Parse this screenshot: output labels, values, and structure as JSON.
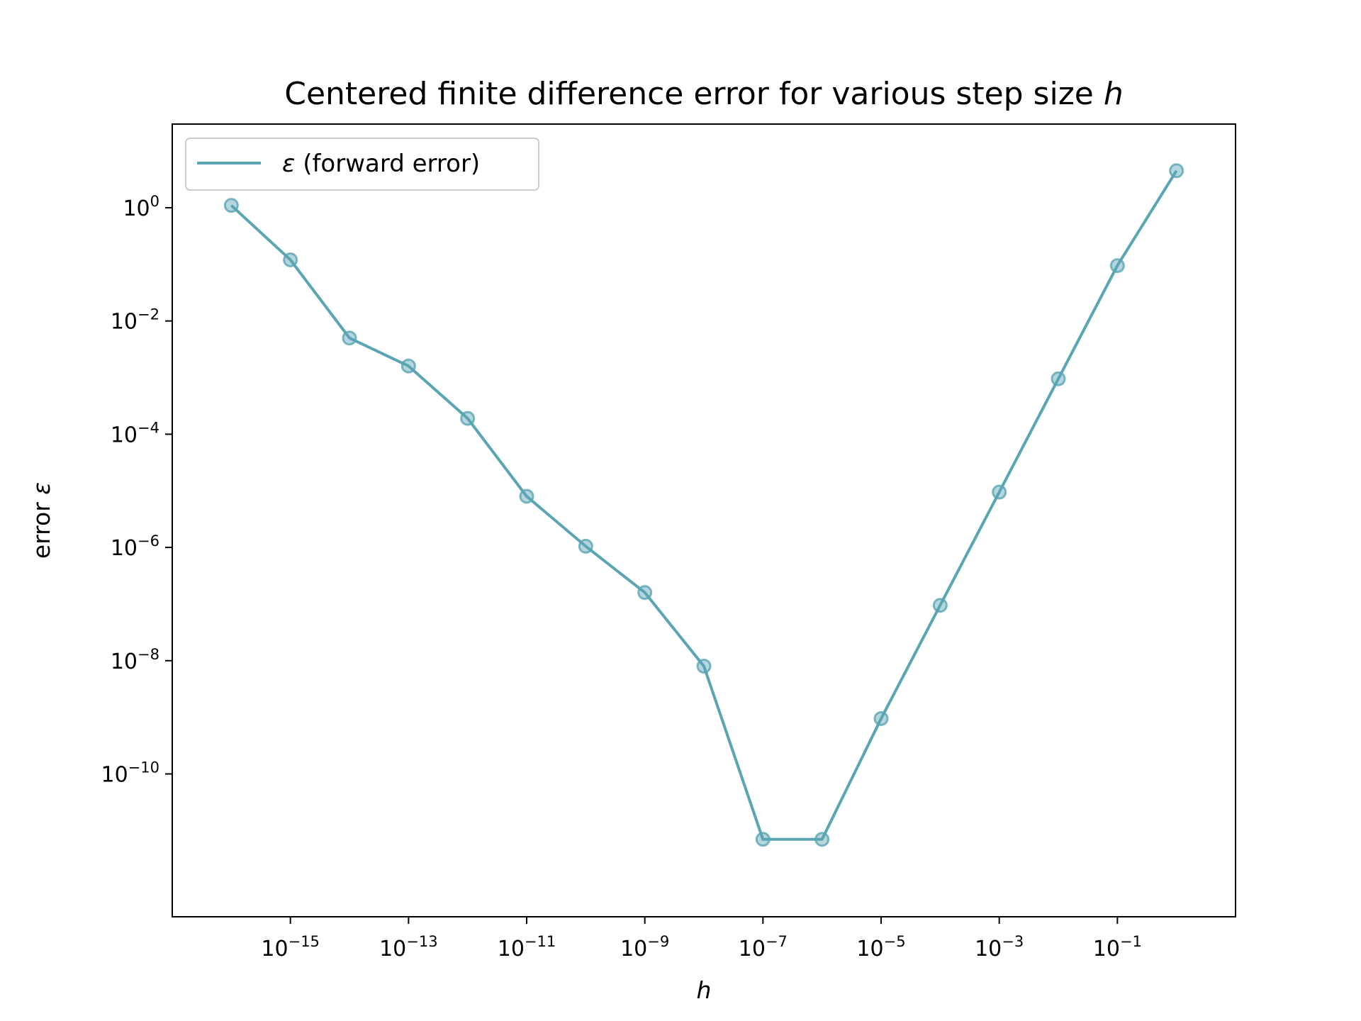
{
  "chart_data": {
    "type": "line",
    "title_text": "Centered finite difference error for various step size ",
    "title_var": "h",
    "xlabel": "h",
    "ylabel_text": "error ",
    "ylabel_var": "ε",
    "xscale": "log",
    "yscale": "log",
    "xlim": [
      1e-17,
      10
    ],
    "ylim": [
      3e-13,
      30
    ],
    "x_ticks": [
      1e-15,
      1e-13,
      1e-11,
      1e-09,
      1e-07,
      1e-05,
      0.001,
      0.1
    ],
    "x_tick_labels": [
      {
        "base": "10",
        "exp": "−15"
      },
      {
        "base": "10",
        "exp": "−13"
      },
      {
        "base": "10",
        "exp": "−11"
      },
      {
        "base": "10",
        "exp": "−9"
      },
      {
        "base": "10",
        "exp": "−7"
      },
      {
        "base": "10",
        "exp": "−5"
      },
      {
        "base": "10",
        "exp": "−3"
      },
      {
        "base": "10",
        "exp": "−1"
      }
    ],
    "y_ticks": [
      1e-10,
      1e-08,
      1e-06,
      0.0001,
      0.01,
      1
    ],
    "y_tick_labels": [
      {
        "base": "10",
        "exp": "−10"
      },
      {
        "base": "10",
        "exp": "−8"
      },
      {
        "base": "10",
        "exp": "−6"
      },
      {
        "base": "10",
        "exp": "−4"
      },
      {
        "base": "10",
        "exp": "−2"
      },
      {
        "base": "10",
        "exp": "0"
      }
    ],
    "grid": false,
    "legend_position": "top-left",
    "series": [
      {
        "name_var": "ε",
        "name_text": " (forward error)",
        "color": "#5aa5b3",
        "x": [
          1e-16,
          1e-15,
          1e-14,
          1e-13,
          1e-12,
          1e-11,
          1e-10,
          1e-09,
          1e-08,
          1e-07,
          1e-06,
          1e-05,
          0.0001,
          0.001,
          0.01,
          0.1,
          1
        ],
        "y": [
          1.1,
          0.12,
          0.005,
          0.0016,
          0.00019,
          8e-06,
          1.05e-06,
          1.6e-07,
          8e-09,
          7e-12,
          7e-12,
          9.5e-10,
          9.5e-08,
          9.5e-06,
          0.00095,
          0.095,
          4.5
        ]
      }
    ]
  }
}
